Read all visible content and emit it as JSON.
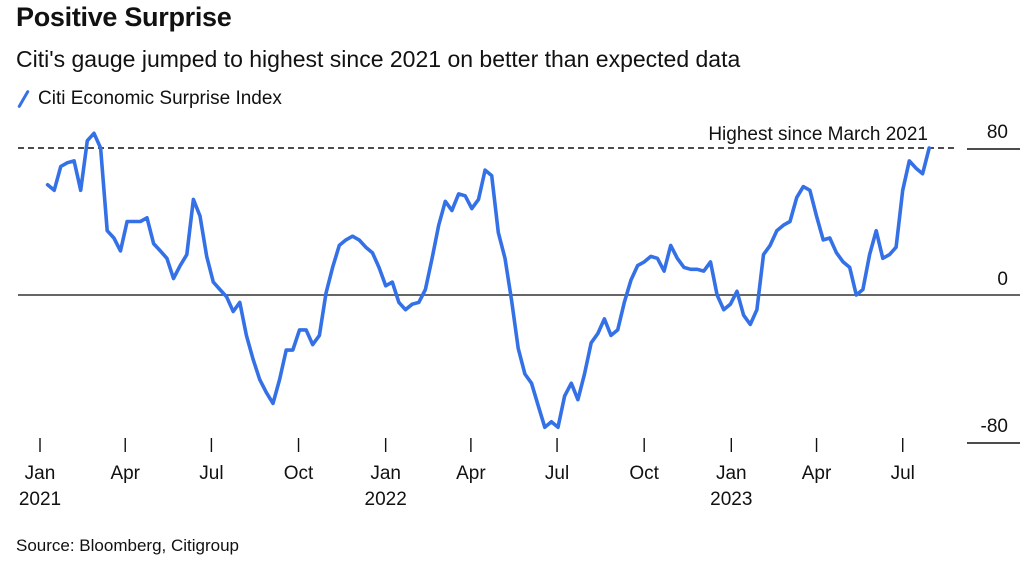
{
  "header": {
    "title": "Positive Surprise",
    "subtitle": "Citi's gauge jumped to highest since 2021 on better than expected data"
  },
  "footer": {
    "source": "Source: Bloomberg, Citigroup"
  },
  "chart_data": {
    "type": "line",
    "title": "Positive Surprise",
    "subtitle": "Citi's gauge jumped to highest since 2021 on better than expected data",
    "xlabel": "",
    "ylabel": "",
    "ylim": [
      -80,
      80
    ],
    "y_ticks": [
      "80",
      "0",
      "-80"
    ],
    "y_tick_values": [
      80,
      0,
      -80
    ],
    "x_ticks": [
      {
        "date": "2021-01-01",
        "label": "Jan",
        "year": "2021"
      },
      {
        "date": "2021-04-01",
        "label": "Apr",
        "year": ""
      },
      {
        "date": "2021-07-01",
        "label": "Jul",
        "year": ""
      },
      {
        "date": "2021-10-01",
        "label": "Oct",
        "year": ""
      },
      {
        "date": "2022-01-01",
        "label": "Jan",
        "year": "2022"
      },
      {
        "date": "2022-04-01",
        "label": "Apr",
        "year": ""
      },
      {
        "date": "2022-07-01",
        "label": "Jul",
        "year": ""
      },
      {
        "date": "2022-10-01",
        "label": "Oct",
        "year": ""
      },
      {
        "date": "2023-01-01",
        "label": "Jan",
        "year": "2023"
      },
      {
        "date": "2023-04-01",
        "label": "Apr",
        "year": ""
      },
      {
        "date": "2023-07-01",
        "label": "Jul",
        "year": ""
      }
    ],
    "grid": false,
    "legend_placement": "top-left",
    "annotation": {
      "text": "Highest since March 2021",
      "value": 80,
      "style": "dashed"
    },
    "zero_line": true,
    "series": [
      {
        "name": "Citi Economic Surprise Index",
        "color": "#3571e6",
        "x": [
          "2021-01-09",
          "2021-01-16",
          "2021-01-23",
          "2021-01-30",
          "2021-02-06",
          "2021-02-13",
          "2021-02-20",
          "2021-02-27",
          "2021-03-06",
          "2021-03-13",
          "2021-03-20",
          "2021-03-27",
          "2021-04-03",
          "2021-04-10",
          "2021-04-17",
          "2021-04-24",
          "2021-05-01",
          "2021-05-08",
          "2021-05-15",
          "2021-05-22",
          "2021-05-29",
          "2021-06-05",
          "2021-06-12",
          "2021-06-19",
          "2021-06-26",
          "2021-07-03",
          "2021-07-10",
          "2021-07-17",
          "2021-07-24",
          "2021-07-31",
          "2021-08-07",
          "2021-08-14",
          "2021-08-21",
          "2021-08-28",
          "2021-09-04",
          "2021-09-11",
          "2021-09-18",
          "2021-09-25",
          "2021-10-02",
          "2021-10-09",
          "2021-10-16",
          "2021-10-23",
          "2021-10-30",
          "2021-11-06",
          "2021-11-13",
          "2021-11-20",
          "2021-11-27",
          "2021-12-04",
          "2021-12-11",
          "2021-12-18",
          "2021-12-25",
          "2022-01-01",
          "2022-01-08",
          "2022-01-15",
          "2022-01-22",
          "2022-01-29",
          "2022-02-05",
          "2022-02-12",
          "2022-02-19",
          "2022-02-26",
          "2022-03-05",
          "2022-03-12",
          "2022-03-19",
          "2022-03-26",
          "2022-04-02",
          "2022-04-09",
          "2022-04-16",
          "2022-04-23",
          "2022-04-30",
          "2022-05-07",
          "2022-05-14",
          "2022-05-21",
          "2022-05-28",
          "2022-06-04",
          "2022-06-11",
          "2022-06-18",
          "2022-06-25",
          "2022-07-02",
          "2022-07-09",
          "2022-07-16",
          "2022-07-23",
          "2022-07-30",
          "2022-08-06",
          "2022-08-13",
          "2022-08-20",
          "2022-08-27",
          "2022-09-03",
          "2022-09-10",
          "2022-09-17",
          "2022-09-24",
          "2022-10-01",
          "2022-10-08",
          "2022-10-15",
          "2022-10-22",
          "2022-10-29",
          "2022-11-05",
          "2022-11-12",
          "2022-11-19",
          "2022-11-26",
          "2022-12-03",
          "2022-12-10",
          "2022-12-17",
          "2022-12-24",
          "2022-12-31",
          "2023-01-07",
          "2023-01-14",
          "2023-01-21",
          "2023-01-28",
          "2023-02-04",
          "2023-02-11",
          "2023-02-18",
          "2023-02-25",
          "2023-03-04",
          "2023-03-11",
          "2023-03-18",
          "2023-03-25",
          "2023-04-01",
          "2023-04-08",
          "2023-04-15",
          "2023-04-22",
          "2023-04-29",
          "2023-05-06",
          "2023-05-13",
          "2023-05-20",
          "2023-05-27",
          "2023-06-03",
          "2023-06-10",
          "2023-06-17",
          "2023-06-24",
          "2023-07-01",
          "2023-07-08",
          "2023-07-15",
          "2023-07-22",
          "2023-07-29"
        ],
        "values": [
          60,
          57,
          70,
          72,
          73,
          57,
          84,
          88,
          80,
          35,
          31,
          24,
          40,
          40,
          40,
          42,
          28,
          24,
          20,
          9,
          16,
          22,
          52,
          43,
          21,
          7,
          3,
          -1,
          -9,
          -4,
          -22,
          -35,
          -46,
          -53,
          -59,
          -46,
          -30,
          -30,
          -19,
          -19,
          -27,
          -22,
          1,
          15,
          27,
          30,
          32,
          30,
          26,
          23,
          15,
          5,
          7,
          -4,
          -8,
          -5,
          -4,
          3,
          20,
          38,
          51,
          46,
          55,
          54,
          47,
          52,
          68,
          65,
          34,
          20,
          -3,
          -29,
          -43,
          -48,
          -60,
          -72,
          -69,
          -72,
          -55,
          -48,
          -57,
          -43,
          -26,
          -21,
          -13,
          -22,
          -19,
          -4,
          8,
          16,
          18,
          21,
          20,
          13,
          27,
          20,
          15,
          14,
          14,
          13,
          18,
          0,
          -8,
          -5,
          2,
          -11,
          -16,
          -8,
          22,
          27,
          35,
          38,
          40,
          53,
          59,
          57,
          43,
          30,
          31,
          23,
          18,
          15,
          0,
          3,
          22,
          35,
          20,
          22,
          26,
          57,
          73,
          69,
          66,
          80
        ]
      }
    ]
  }
}
